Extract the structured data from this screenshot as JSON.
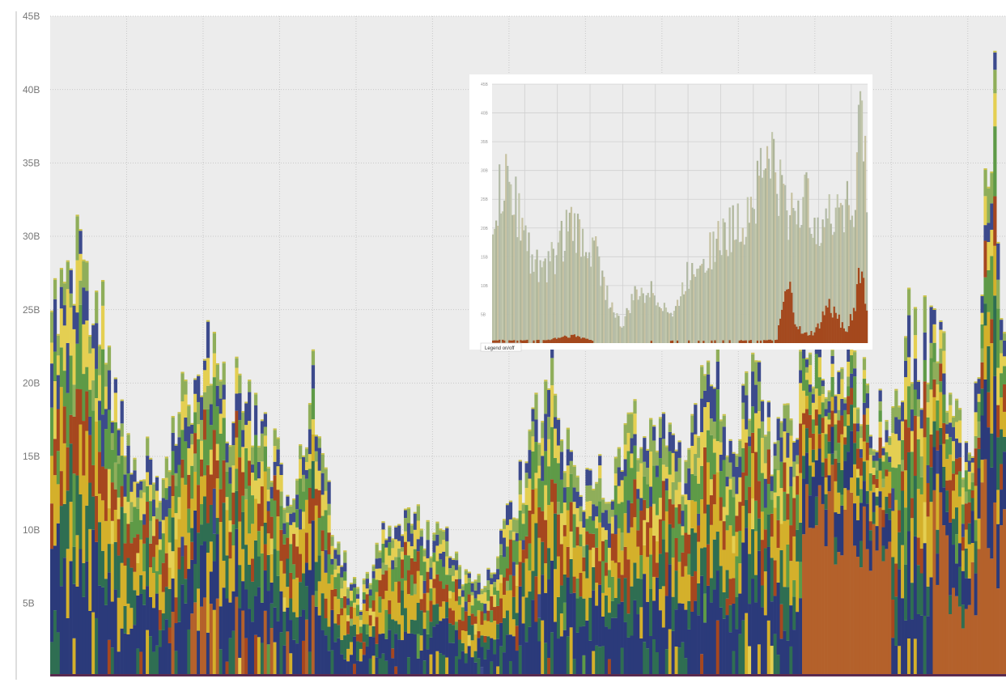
{
  "chart_data": [
    {
      "type": "area",
      "title": "",
      "xlabel": "",
      "ylabel": "",
      "stacked": true,
      "ylim": [
        0,
        45
      ],
      "yticks": [
        {
          "value": 5,
          "label": "5B"
        },
        {
          "value": 10,
          "label": "10B"
        },
        {
          "value": 15,
          "label": "15B"
        },
        {
          "value": 20,
          "label": "20B"
        },
        {
          "value": 25,
          "label": "25B"
        },
        {
          "value": 30,
          "label": "30B"
        },
        {
          "value": 35,
          "label": "35B"
        },
        {
          "value": 40,
          "label": "40B"
        },
        {
          "value": 45,
          "label": "45B"
        }
      ],
      "grid": true,
      "x_grid_count": 12,
      "legend": "none",
      "total_profile": [
        [
          0,
          26.5
        ],
        [
          1,
          29
        ],
        [
          2,
          30.5
        ],
        [
          3,
          29.5
        ],
        [
          4,
          27.5
        ],
        [
          5,
          22
        ],
        [
          6,
          19
        ],
        [
          7,
          16
        ],
        [
          8,
          15
        ],
        [
          9,
          14.5
        ],
        [
          10,
          17.5
        ],
        [
          11,
          19
        ],
        [
          12,
          21.5
        ],
        [
          13,
          23
        ],
        [
          14,
          21
        ],
        [
          15,
          20
        ],
        [
          16,
          20.5
        ],
        [
          17,
          19
        ],
        [
          18,
          16.5
        ],
        [
          19,
          15
        ],
        [
          20,
          14
        ],
        [
          21,
          15.5
        ],
        [
          22,
          20.5
        ],
        [
          23,
          14
        ],
        [
          24,
          10
        ],
        [
          25,
          6.5
        ],
        [
          26,
          5.5
        ],
        [
          27,
          8.5
        ],
        [
          28,
          10
        ],
        [
          29,
          10.5
        ],
        [
          30,
          11
        ],
        [
          31,
          10.5
        ],
        [
          32,
          10
        ],
        [
          33,
          9.5
        ],
        [
          34,
          8.5
        ],
        [
          35,
          7
        ],
        [
          36,
          6.5
        ],
        [
          37,
          8.5
        ],
        [
          38,
          10
        ],
        [
          39,
          12.5
        ],
        [
          40,
          15.5
        ],
        [
          41,
          20
        ],
        [
          42,
          22
        ],
        [
          43,
          16
        ],
        [
          44,
          14.5
        ],
        [
          45,
          13.5
        ],
        [
          46,
          14
        ],
        [
          47,
          13
        ],
        [
          48,
          16.5
        ],
        [
          49,
          18.5
        ],
        [
          50,
          17
        ],
        [
          51,
          17.5
        ],
        [
          52,
          16
        ],
        [
          53,
          14.5
        ],
        [
          54,
          19
        ],
        [
          55,
          21
        ],
        [
          56,
          22.5
        ],
        [
          57,
          17
        ],
        [
          58,
          18.5
        ],
        [
          59,
          22
        ],
        [
          60,
          18
        ],
        [
          61,
          16
        ],
        [
          62,
          18
        ],
        [
          63,
          21
        ],
        [
          64,
          24.5
        ],
        [
          65,
          22
        ],
        [
          66,
          21
        ],
        [
          67,
          24
        ],
        [
          68,
          20.5
        ],
        [
          69,
          19
        ],
        [
          70,
          18
        ],
        [
          71,
          21
        ],
        [
          72,
          25
        ],
        [
          73,
          22.5
        ],
        [
          74,
          26
        ],
        [
          75,
          21
        ],
        [
          76,
          18.5
        ],
        [
          77,
          15
        ],
        [
          78,
          27.5
        ],
        [
          79,
          45
        ],
        [
          80,
          22
        ]
      ],
      "series": [
        {
          "color": "#2b3a7a",
          "share": 0.22
        },
        {
          "color": "#2f6e52",
          "share": 0.14
        },
        {
          "color": "#d4b02b",
          "share": 0.16
        },
        {
          "color": "#a6471f",
          "share": 0.12
        },
        {
          "color": "#5e9a47",
          "share": 0.12
        },
        {
          "color": "#e4cf52",
          "share": 0.09
        },
        {
          "color": "#3c4a8c",
          "share": 0.08
        },
        {
          "color": "#8fae5a",
          "share": 0.07
        }
      ],
      "highlight_series_color": "#b4612b"
    },
    {
      "type": "area",
      "role": "inset",
      "title": "",
      "stacked": true,
      "ylim": [
        0,
        45
      ],
      "yticks": [
        {
          "value": 5,
          "label": "5B"
        },
        {
          "value": 10,
          "label": "10B"
        },
        {
          "value": 15,
          "label": "15B"
        },
        {
          "value": 20,
          "label": "20B"
        },
        {
          "value": 25,
          "label": "25B"
        },
        {
          "value": 30,
          "label": "30B"
        },
        {
          "value": 35,
          "label": "35B"
        },
        {
          "value": 40,
          "label": "40B"
        },
        {
          "value": 45,
          "label": "45B"
        }
      ],
      "legend_toggle_label": "Legend on/off",
      "total_profile": [
        [
          0,
          24
        ],
        [
          2,
          30
        ],
        [
          4,
          25
        ],
        [
          6,
          16
        ],
        [
          8,
          13
        ],
        [
          10,
          18
        ],
        [
          12,
          22
        ],
        [
          14,
          19
        ],
        [
          16,
          17
        ],
        [
          18,
          8
        ],
        [
          20,
          3
        ],
        [
          22,
          9
        ],
        [
          24,
          10
        ],
        [
          26,
          8
        ],
        [
          28,
          5
        ],
        [
          30,
          12
        ],
        [
          32,
          16
        ],
        [
          34,
          18
        ],
        [
          36,
          20
        ],
        [
          38,
          22
        ],
        [
          40,
          26
        ],
        [
          42,
          33
        ],
        [
          43,
          37
        ],
        [
          44,
          30
        ],
        [
          46,
          24
        ],
        [
          48,
          27
        ],
        [
          50,
          24
        ],
        [
          52,
          22
        ],
        [
          54,
          28
        ],
        [
          56,
          24
        ],
        [
          57,
          45
        ],
        [
          58,
          28
        ]
      ],
      "highlight_series": [
        [
          0,
          0.5
        ],
        [
          8,
          0.5
        ],
        [
          12,
          1.5
        ],
        [
          14,
          1
        ],
        [
          16,
          0.3
        ],
        [
          18,
          0.3
        ],
        [
          44,
          0.5
        ],
        [
          45,
          7
        ],
        [
          46,
          10
        ],
        [
          47,
          4
        ],
        [
          48,
          1.5
        ],
        [
          50,
          2
        ],
        [
          52,
          7
        ],
        [
          54,
          4
        ],
        [
          55,
          3
        ],
        [
          56,
          6
        ],
        [
          57,
          15
        ],
        [
          58,
          6
        ]
      ]
    }
  ]
}
